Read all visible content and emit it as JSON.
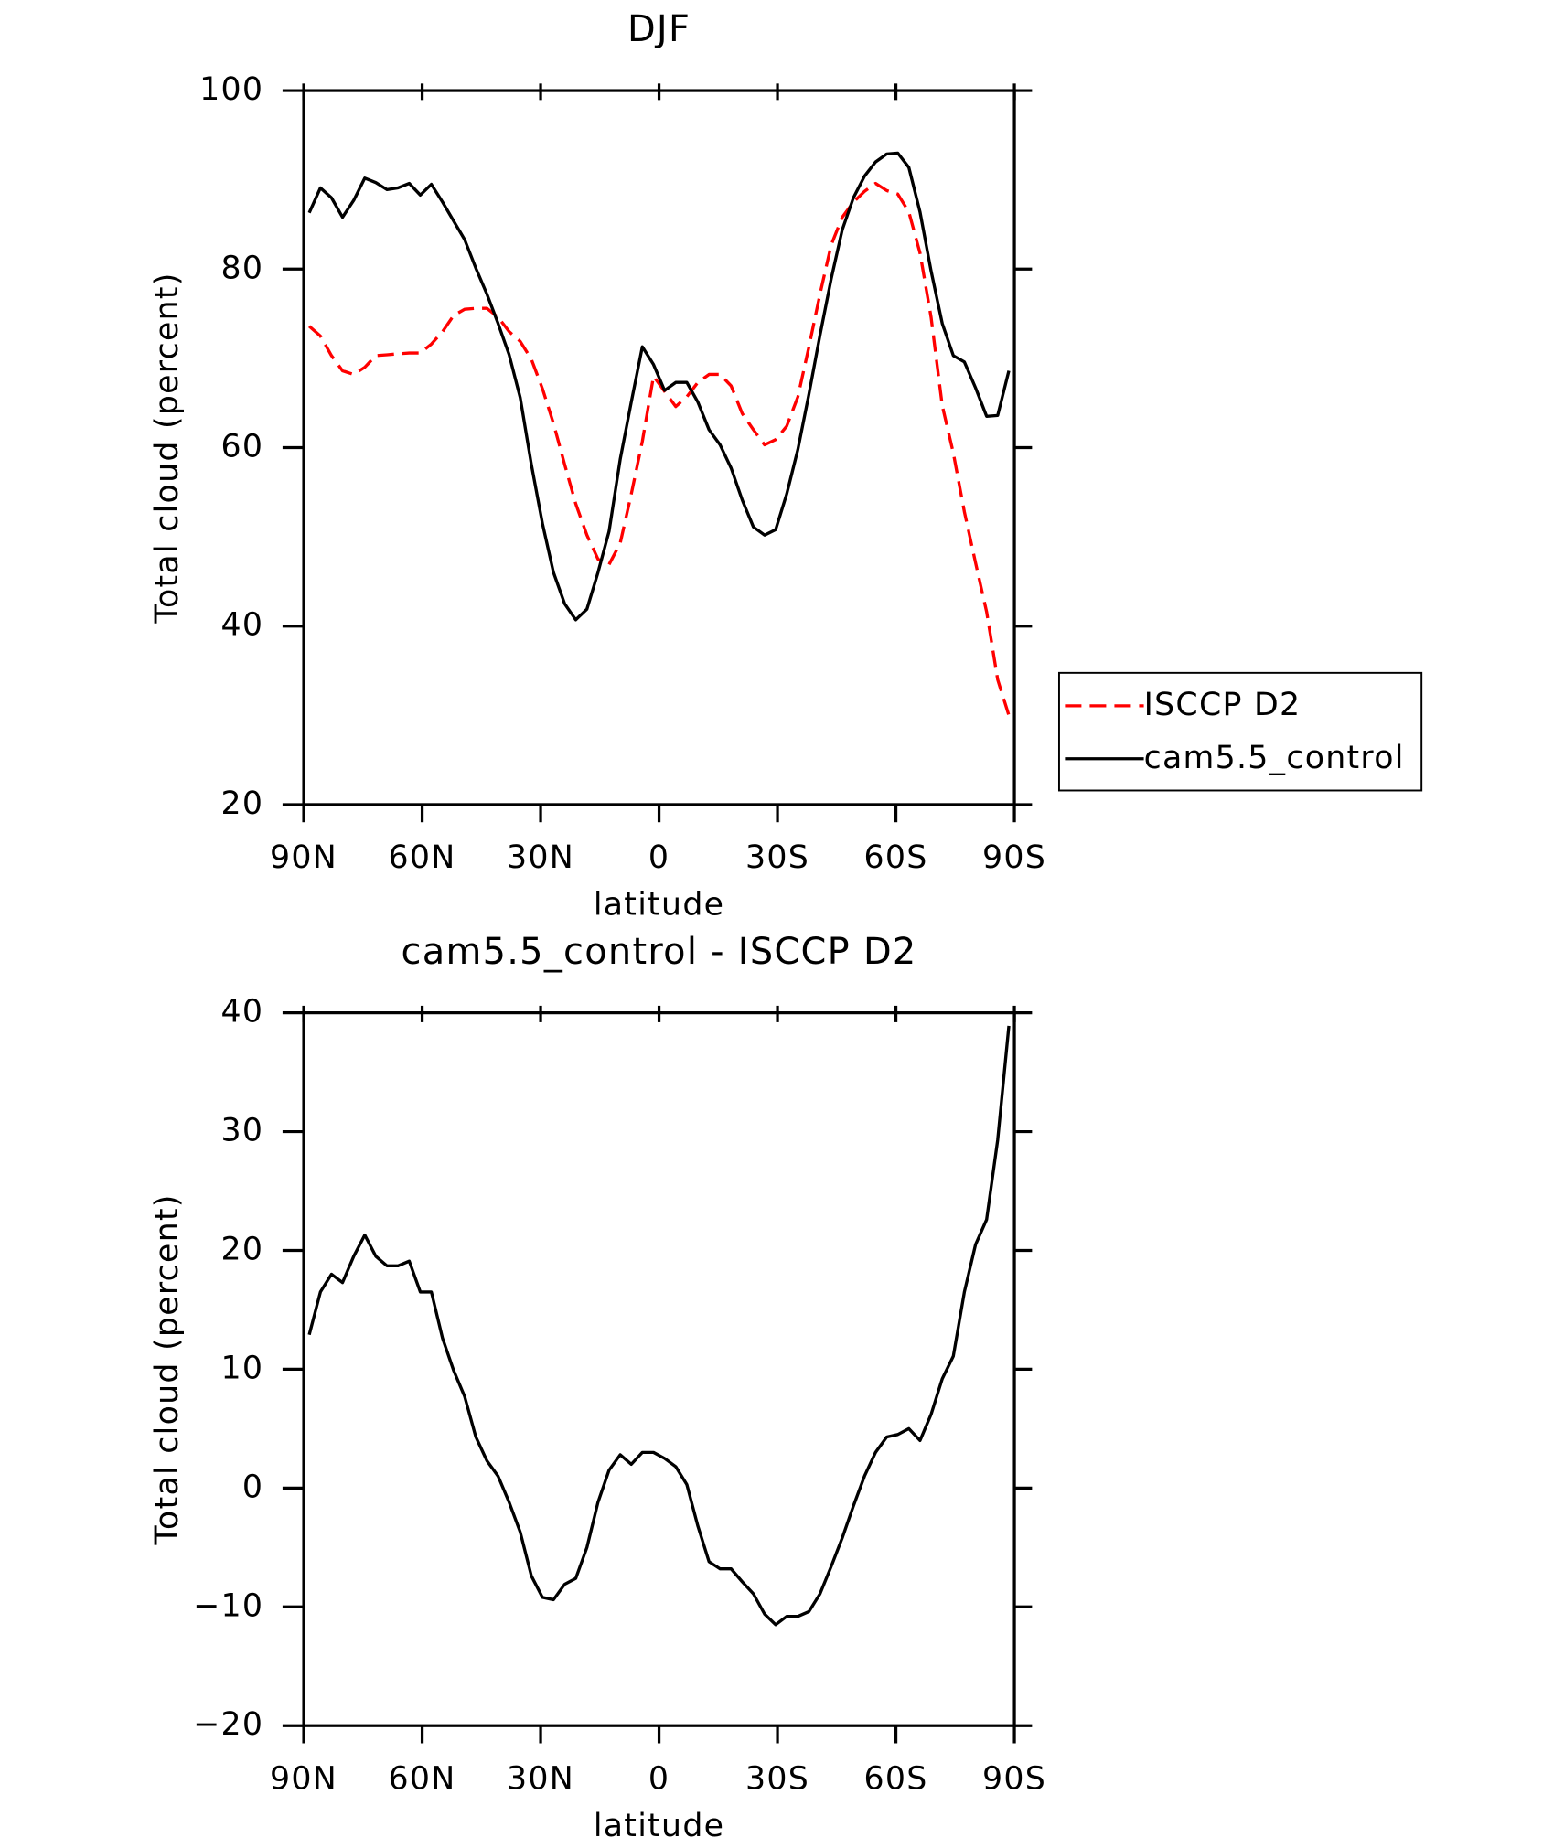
{
  "chart_data": [
    {
      "type": "line",
      "title": "DJF",
      "x_label": "latitude",
      "y_label": "Total cloud (percent)",
      "xlim": [
        90,
        -90
      ],
      "xticks": [
        {
          "value": 90,
          "label": "90N"
        },
        {
          "value": 60,
          "label": "60N"
        },
        {
          "value": 30,
          "label": "30N"
        },
        0,
        {
          "value": -30,
          "label": "30S"
        },
        {
          "value": -60,
          "label": "60S"
        },
        {
          "value": -90,
          "label": "90S"
        }
      ],
      "ylim": [
        20,
        100
      ],
      "yticks": [
        20,
        40,
        60,
        80,
        100
      ],
      "legend": "right",
      "x": [
        88.59,
        85.78,
        82.97,
        80.16,
        77.34,
        74.53,
        71.72,
        68.91,
        66.09,
        63.28,
        60.47,
        57.66,
        54.84,
        52.03,
        49.22,
        46.41,
        43.59,
        40.78,
        37.97,
        35.16,
        32.34,
        29.53,
        26.72,
        23.91,
        21.09,
        18.28,
        15.47,
        12.66,
        9.84,
        7.03,
        4.22,
        1.41,
        -1.41,
        -4.22,
        -7.03,
        -9.84,
        -12.66,
        -15.47,
        -18.28,
        -21.09,
        -23.91,
        -26.72,
        -29.53,
        -32.34,
        -35.16,
        -37.97,
        -40.78,
        -43.59,
        -46.41,
        -49.22,
        -52.03,
        -54.84,
        -57.66,
        -60.47,
        -63.28,
        -66.09,
        -68.91,
        -71.72,
        -74.53,
        -77.34,
        -80.16,
        -82.97,
        -85.78,
        -88.59
      ],
      "series": [
        {
          "name": "ISCCP D2",
          "color": "#ff0000",
          "dash": true,
          "values": [
            73.6,
            72.5,
            70.3,
            68.6,
            68.2,
            69.0,
            70.3,
            70.4,
            70.5,
            70.6,
            70.6,
            71.6,
            73.0,
            74.8,
            75.5,
            75.6,
            75.6,
            74.6,
            73.0,
            71.9,
            69.9,
            66.6,
            62.7,
            58.1,
            53.7,
            50.2,
            47.5,
            46.9,
            49.3,
            54.8,
            60.7,
            68.0,
            66.3,
            64.6,
            65.7,
            67.3,
            68.2,
            68.2,
            66.9,
            63.8,
            62.0,
            60.3,
            60.9,
            62.4,
            65.7,
            71.3,
            77.2,
            82.7,
            85.8,
            87.5,
            88.7,
            89.6,
            88.8,
            88.4,
            86.4,
            81.8,
            74.6,
            64.7,
            59.4,
            52.8,
            47.1,
            41.6,
            34.0,
            30.0
          ]
        },
        {
          "name": "cam5.5_control",
          "color": "#000000",
          "dash": false,
          "values": [
            86.3,
            89.1,
            88.0,
            85.8,
            87.7,
            90.2,
            89.7,
            88.9,
            89.1,
            89.6,
            88.3,
            89.5,
            87.5,
            85.4,
            83.3,
            80.1,
            77.2,
            73.9,
            70.4,
            65.6,
            58.1,
            51.5,
            46.0,
            42.5,
            40.7,
            41.9,
            46.0,
            50.6,
            58.7,
            65.1,
            71.3,
            69.3,
            66.4,
            67.3,
            67.3,
            65.1,
            62.0,
            60.3,
            57.7,
            54.1,
            51.1,
            50.2,
            50.8,
            54.8,
            59.8,
            66.0,
            72.6,
            78.9,
            84.4,
            88.0,
            90.4,
            92.0,
            92.9,
            93.0,
            91.4,
            86.4,
            79.8,
            73.9,
            70.3,
            69.6,
            66.7,
            63.5,
            63.6,
            68.6
          ]
        }
      ]
    },
    {
      "type": "line",
      "title": "cam5.5_control - ISCCP D2",
      "x_label": "latitude",
      "y_label": "Total cloud (percent)",
      "xlim": [
        90,
        -90
      ],
      "xticks": [
        {
          "value": 90,
          "label": "90N"
        },
        {
          "value": 60,
          "label": "60N"
        },
        {
          "value": 30,
          "label": "30N"
        },
        0,
        {
          "value": -30,
          "label": "30S"
        },
        {
          "value": -60,
          "label": "60S"
        },
        {
          "value": -90,
          "label": "90S"
        }
      ],
      "ylim": [
        -20,
        40
      ],
      "yticks": [
        {
          "value": -20,
          "label": "−20"
        },
        {
          "value": -10,
          "label": "−10"
        },
        0,
        10,
        20,
        30,
        40
      ],
      "x": [
        88.59,
        85.78,
        82.97,
        80.16,
        77.34,
        74.53,
        71.72,
        68.91,
        66.09,
        63.28,
        60.47,
        57.66,
        54.84,
        52.03,
        49.22,
        46.41,
        43.59,
        40.78,
        37.97,
        35.16,
        32.34,
        29.53,
        26.72,
        23.91,
        21.09,
        18.28,
        15.47,
        12.66,
        9.84,
        7.03,
        4.22,
        1.41,
        -1.41,
        -4.22,
        -7.03,
        -9.84,
        -12.66,
        -15.47,
        -18.28,
        -21.09,
        -23.91,
        -26.72,
        -29.53,
        -32.34,
        -35.16,
        -37.97,
        -40.78,
        -43.59,
        -46.41,
        -49.22,
        -52.03,
        -54.84,
        -57.66,
        -60.47,
        -63.28,
        -66.09,
        -68.91,
        -71.72,
        -74.53,
        -77.34,
        -80.16,
        -82.97,
        -85.78,
        -88.59
      ],
      "series": [
        {
          "color": "#000000",
          "dash": false,
          "values": [
            12.9,
            16.5,
            18.0,
            17.3,
            19.5,
            21.3,
            19.5,
            18.7,
            18.7,
            19.1,
            16.5,
            16.5,
            12.6,
            9.9,
            7.7,
            4.3,
            2.3,
            1.0,
            -1.2,
            -3.7,
            -7.4,
            -9.2,
            -9.4,
            -8.1,
            -7.6,
            -5.0,
            -1.2,
            1.5,
            2.8,
            2.0,
            3.0,
            3.0,
            2.5,
            1.8,
            0.3,
            -3.2,
            -6.2,
            -6.8,
            -6.8,
            -7.9,
            -8.9,
            -10.6,
            -11.5,
            -10.8,
            -10.8,
            -10.4,
            -8.9,
            -6.6,
            -4.2,
            -1.5,
            1.0,
            3.0,
            4.3,
            4.5,
            5.0,
            4.0,
            6.2,
            9.2,
            11.1,
            16.5,
            20.5,
            22.6,
            29.3,
            38.9
          ]
        }
      ]
    }
  ]
}
